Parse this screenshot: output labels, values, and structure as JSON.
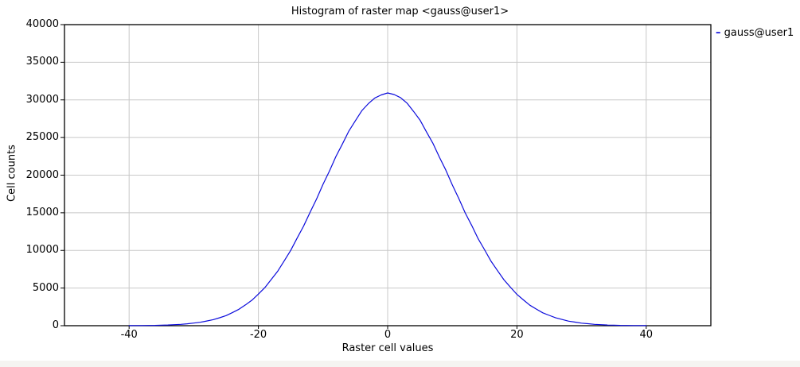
{
  "window": {
    "background_color": "#ffffff",
    "statusbar_color": "#f5f4f1"
  },
  "chart_data": {
    "type": "line",
    "title": "Histogram of raster map <gauss@user1>",
    "xlabel": "Raster cell values",
    "ylabel": "Cell counts",
    "xlim": [
      -50,
      50
    ],
    "ylim": [
      0,
      40000
    ],
    "x_ticks": [
      -40,
      -20,
      0,
      20,
      40
    ],
    "y_ticks": [
      0,
      5000,
      10000,
      15000,
      20000,
      25000,
      30000,
      35000,
      40000
    ],
    "grid": true,
    "grid_color": "#c8c8c8",
    "axis_color": "#000000",
    "legend": {
      "marker": "–",
      "position": "outside-top-right"
    },
    "series": [
      {
        "name": "gauss@user1",
        "color": "#0b0bdc",
        "x": [
          -40,
          -39,
          -38,
          -37,
          -36,
          -35,
          -34,
          -33,
          -32,
          -31,
          -30,
          -29,
          -28,
          -27,
          -26,
          -25,
          -24,
          -23,
          -22,
          -21,
          -20,
          -19,
          -18,
          -17,
          -16,
          -15,
          -14,
          -13,
          -12,
          -11,
          -10,
          -9,
          -8,
          -7,
          -6,
          -5,
          -4,
          -3,
          -2,
          -1,
          0,
          1,
          2,
          3,
          4,
          5,
          6,
          7,
          8,
          9,
          10,
          11,
          12,
          13,
          14,
          15,
          16,
          17,
          18,
          19,
          20,
          21,
          22,
          23,
          24,
          25,
          26,
          27,
          28,
          29,
          30,
          31,
          32,
          33,
          34,
          35,
          36,
          37,
          38,
          39,
          40
        ],
        "y": [
          12,
          17,
          24,
          35,
          45,
          70,
          92,
          138,
          180,
          258,
          349,
          455,
          622,
          800,
          1060,
          1345,
          1750,
          2180,
          2760,
          3390,
          4200,
          5060,
          6150,
          7260,
          8620,
          10010,
          11640,
          13230,
          15080,
          16830,
          18790,
          20560,
          22480,
          24150,
          25870,
          27220,
          28560,
          29490,
          30250,
          30660,
          30920,
          30710,
          30300,
          29560,
          28470,
          27320,
          25760,
          24240,
          22390,
          20660,
          18700,
          16920,
          14990,
          13320,
          11550,
          10080,
          8560,
          7310,
          6080,
          5110,
          4160,
          3430,
          2720,
          2210,
          1710,
          1370,
          1040,
          820,
          600,
          470,
          335,
          260,
          180,
          140,
          90,
          70,
          44,
          36,
          20,
          18,
          11
        ]
      }
    ]
  }
}
